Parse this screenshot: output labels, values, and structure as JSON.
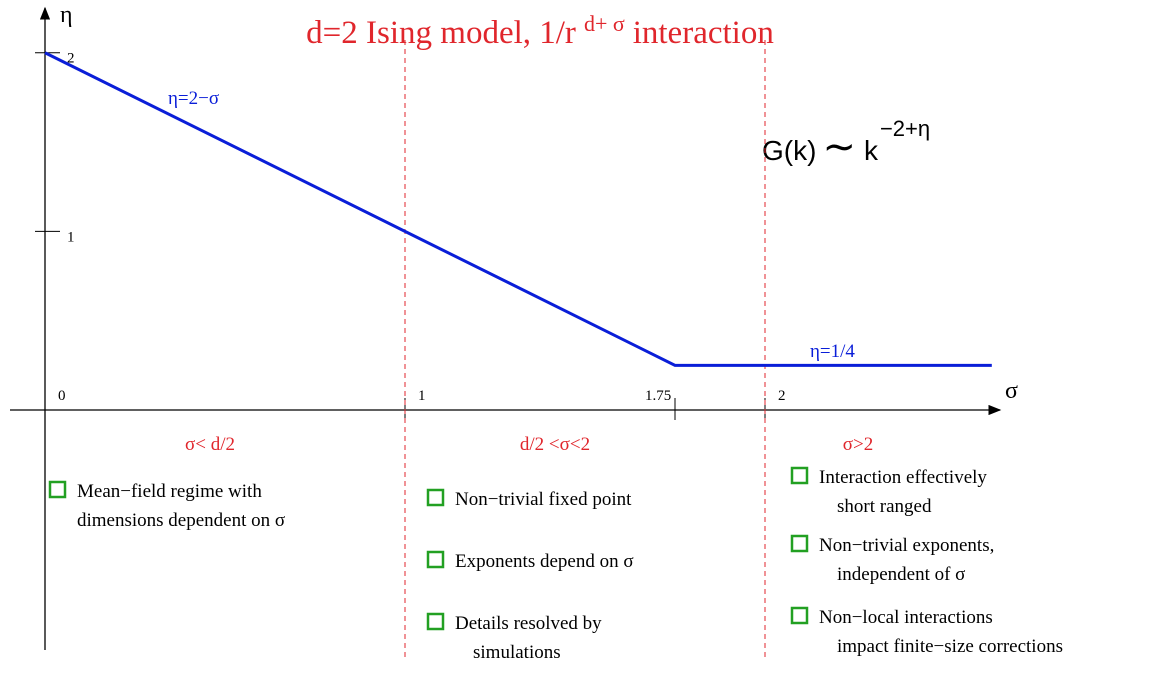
{
  "chart_data": {
    "type": "line",
    "title": {
      "main": "d=2 Ising model, 1/r",
      "sup": "d+ σ",
      "rest": "interaction"
    },
    "x_label": "σ",
    "y_label": "η",
    "x": [
      0,
      1,
      1.75,
      2.63
    ],
    "series": [
      {
        "color": "#0a1ed8",
        "values": [
          2,
          1,
          0.25,
          0.25
        ]
      }
    ],
    "xlim": [
      0,
      2.65
    ],
    "ylim": [
      0,
      2.2
    ],
    "xticks": [
      0,
      1,
      1.75,
      2
    ],
    "yticks": [
      1,
      2
    ],
    "boundaries": [
      1,
      2
    ],
    "line_labels": [
      "η=2−σ",
      "η=1/4"
    ],
    "formula": {
      "base": "G(k)",
      "tilde": "∼",
      "k": "k",
      "sup": "−2+η"
    },
    "regions": [
      {
        "label": "σ< d/2",
        "items": [
          [
            "Mean−field regime with",
            "dimensions dependent on  σ"
          ]
        ]
      },
      {
        "label": "d/2 <σ<2",
        "items": [
          [
            "Non−trivial fixed point"
          ],
          [
            "Exponents depend on  σ"
          ],
          [
            "Details resolved by",
            "simulations"
          ]
        ]
      },
      {
        "label": "σ>2",
        "items": [
          [
            "Interaction effectively",
            "short ranged"
          ],
          [
            "Non−trivial exponents,",
            "independent of  σ"
          ],
          [
            "Non−local interactions",
            "impact finite−size corrections"
          ]
        ]
      }
    ]
  }
}
